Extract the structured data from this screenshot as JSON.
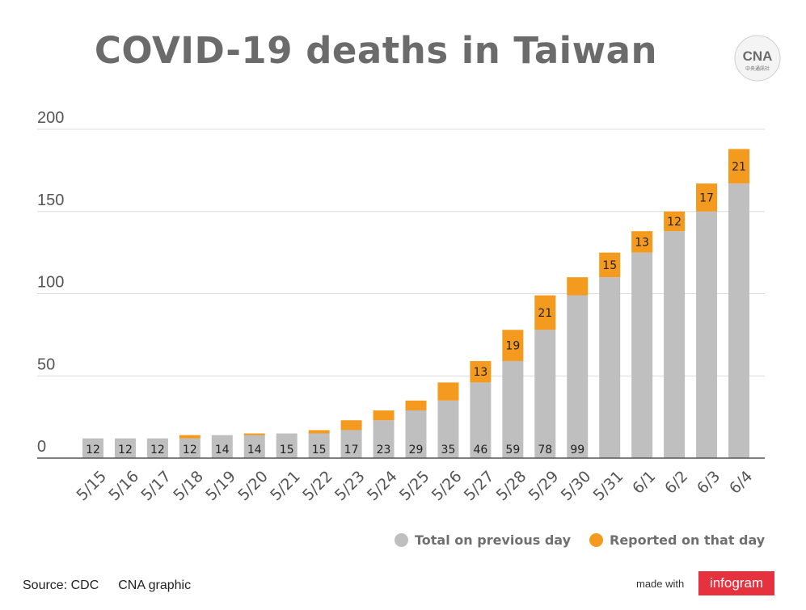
{
  "title": "COVID-19 deaths in Taiwan",
  "logo": {
    "icon": "cna-logo-icon",
    "text": "CNA",
    "subtext": "中央通訊社"
  },
  "chart_data": {
    "type": "bar",
    "stacked": true,
    "title": "COVID-19 deaths in Taiwan",
    "categories": [
      "5/15",
      "5/16",
      "5/17",
      "5/18",
      "5/19",
      "5/20",
      "5/21",
      "5/22",
      "5/23",
      "5/24",
      "5/25",
      "5/26",
      "5/27",
      "5/28",
      "5/29",
      "5/30",
      "5/31",
      "6/1",
      "6/2",
      "6/3",
      "6/4"
    ],
    "series": [
      {
        "name": "Total on previous day",
        "color": "#bfbfbf",
        "values": [
          12,
          12,
          12,
          12,
          14,
          14,
          15,
          15,
          17,
          23,
          29,
          35,
          46,
          59,
          78,
          99,
          110,
          125,
          138,
          150,
          167
        ]
      },
      {
        "name": "Reported on that day",
        "color": "#f39a1f",
        "values": [
          0,
          0,
          0,
          2,
          0,
          1,
          0,
          2,
          6,
          6,
          6,
          11,
          13,
          19,
          21,
          11,
          15,
          13,
          12,
          17,
          21
        ]
      }
    ],
    "data_labels": {
      "Total on previous day": [
        "12",
        "12",
        "12",
        "12",
        "14",
        "14",
        "15",
        "15",
        "17",
        "23",
        "29",
        "35",
        "46",
        "59",
        "78",
        "99",
        "",
        "",
        "",
        "",
        ""
      ],
      "Reported on that day": [
        "",
        "",
        "",
        "",
        "",
        "",
        "",
        "",
        "",
        "",
        "",
        "",
        "13",
        "19",
        "21",
        "",
        "15",
        "13",
        "12",
        "17",
        "21"
      ]
    },
    "yticks": [
      0,
      50,
      100,
      150,
      200
    ],
    "ylim": [
      0,
      200
    ],
    "grid": true,
    "legend": "bottom-right"
  },
  "legend": [
    {
      "label": "Total on previous day",
      "color": "#bfbfbf"
    },
    {
      "label": "Reported on that day",
      "color": "#f39a1f"
    }
  ],
  "footer": {
    "source": "Source: CDC",
    "credit": "CNA graphic",
    "made_with": "made with",
    "brand": "infogram"
  }
}
